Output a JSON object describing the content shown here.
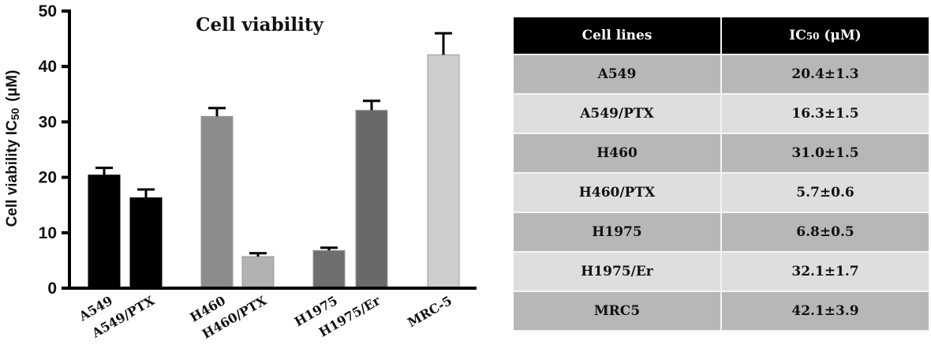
{
  "chart_data": {
    "type": "bar",
    "title": "Cell viability",
    "ylabel": "Cell viability IC",
    "ylabel_sub": "50",
    "ylabel_unit": "(μM)",
    "ylim": [
      0,
      50
    ],
    "yticks": [
      "0",
      "10",
      "20",
      "30",
      "40",
      "50"
    ],
    "grid": false,
    "categories": [
      "A549",
      "A549/PTX",
      "H460",
      "H460/PTX",
      "H1975",
      "H1975/Er",
      "MRC-5"
    ],
    "values": [
      20.4,
      16.3,
      31.0,
      5.7,
      6.8,
      32.1,
      42.1
    ],
    "errors": [
      1.3,
      1.5,
      1.5,
      0.6,
      0.5,
      1.7,
      3.9
    ],
    "colors": [
      "#000000",
      "#000000",
      "#8c8c8c",
      "#b2b2b2",
      "#6e6e6e",
      "#696969",
      "#cecece"
    ]
  },
  "table": {
    "header": {
      "col1": "Cell lines",
      "col2_main": "IC",
      "col2_sub": "50",
      "col2_unit": " (μM)"
    },
    "rows": [
      {
        "line": "A549",
        "ic50": "20.4±1.3"
      },
      {
        "line": "A549/PTX",
        "ic50": "16.3±1.5"
      },
      {
        "line": "H460",
        "ic50": "31.0±1.5"
      },
      {
        "line": "H460/PTX",
        "ic50": "5.7±0.6"
      },
      {
        "line": "H1975",
        "ic50": "6.8±0.5"
      },
      {
        "line": "H1975/Er",
        "ic50": "32.1±1.7"
      },
      {
        "line": "MRC5",
        "ic50": "42.1±3.9"
      }
    ],
    "colors": {
      "header_bg": "#000000",
      "row_dark": "#b7b7b7",
      "row_light": "#dedede"
    }
  }
}
